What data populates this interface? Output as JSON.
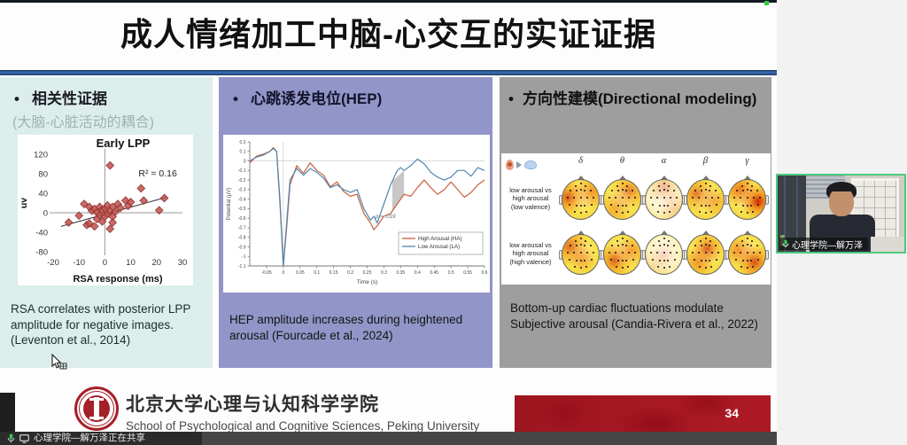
{
  "slide": {
    "title": "成人情绪加工中脑-心交互的实证证据",
    "bullet": "•",
    "page_number": "34",
    "panels": [
      {
        "heading": "相关性证据",
        "subheading": "(大脑-心脏活动的耦合)",
        "caption": "RSA correlates with posterior LPP amplitude for negative images. (Leventon et al., 2014)"
      },
      {
        "heading": "心跳诱发电位(HEP)",
        "caption": "HEP amplitude increases during heightened arousal (Fourcade et al., 2024)"
      },
      {
        "heading": "方向性建模(Directional modeling)",
        "caption": "Bottom-up cardiac fluctuations modulate Subjective arousal (Candia-Rivera et al., 2022)"
      }
    ],
    "footer": {
      "org_cn": "北京大学心理与认知科学学院",
      "org_en": "School of Psychological and Cognitive Sciences, Peking University"
    }
  },
  "meeting": {
    "participant_label": "心理学院—解万泽",
    "sharing_status": "心理学院—解万泽正在共享"
  },
  "colors": {
    "panel1_bg": "#dceeeb",
    "panel2_bg": "#9195c7",
    "panel3_bg": "#9e9e9e",
    "banner_red": "#a81b24",
    "title_rule_blue": "#2d5b9e",
    "scatter_marker": "#c0504d",
    "hep_high_arousal": "#c8603c",
    "hep_low_arousal": "#4f86ad",
    "webcam_border": "#4fc97e"
  },
  "chart_data": [
    {
      "type": "scatter",
      "title": "Early LPP",
      "xlabel": "RSA response (ms)",
      "ylabel": "uv",
      "xlim": [
        -20,
        30
      ],
      "ylim": [
        -80,
        120
      ],
      "xticks": [
        -20,
        -10,
        0,
        10,
        20,
        30
      ],
      "yticks": [
        -80,
        -40,
        0,
        40,
        80,
        120
      ],
      "annotation": "R² = 0.16",
      "annotation_xy": [
        13,
        75
      ],
      "marker": "diamond",
      "points": [
        [
          -14,
          -20
        ],
        [
          -10,
          -6
        ],
        [
          -8,
          18
        ],
        [
          -7,
          -25
        ],
        [
          -6,
          12
        ],
        [
          -6,
          -22
        ],
        [
          -5,
          4
        ],
        [
          -4,
          -28
        ],
        [
          -4,
          8
        ],
        [
          -3,
          0
        ],
        [
          -3,
          -13
        ],
        [
          -2,
          12
        ],
        [
          -2,
          -5
        ],
        [
          -1,
          -18
        ],
        [
          -1,
          6
        ],
        [
          0,
          8
        ],
        [
          0,
          -8
        ],
        [
          1,
          15
        ],
        [
          1,
          -2
        ],
        [
          2,
          97
        ],
        [
          2,
          4
        ],
        [
          2,
          -33
        ],
        [
          3,
          12
        ],
        [
          3,
          -8
        ],
        [
          3,
          -20
        ],
        [
          4,
          2
        ],
        [
          5,
          18
        ],
        [
          6,
          10
        ],
        [
          8,
          25
        ],
        [
          9,
          14
        ],
        [
          10,
          22
        ],
        [
          14,
          50
        ],
        [
          15,
          25
        ],
        [
          21,
          5
        ],
        [
          23,
          30
        ]
      ],
      "trendline": {
        "x1": -17,
        "y1": -28,
        "x2": 24,
        "y2": 32
      }
    },
    {
      "type": "line",
      "xlabel": "Time (s)",
      "ylabel": "Potential (µV)",
      "xlim": [
        -0.1,
        0.6
      ],
      "ylim": [
        -1.1,
        0.2
      ],
      "xticks": [
        -0.05,
        0,
        0.05,
        0.1,
        0.15,
        0.2,
        0.25,
        0.3,
        0.35,
        0.4,
        0.45,
        0.5,
        0.55,
        0.6
      ],
      "yticks": [
        0.2,
        0.1,
        0,
        -0.1,
        -0.2,
        -0.3,
        -0.4,
        -0.5,
        -0.6,
        -0.7,
        -0.8,
        -0.9,
        -1,
        -1.1
      ],
      "annotation": "p = .019",
      "annotation_xy": [
        0.275,
        -0.6
      ],
      "highlight_x": [
        0.325,
        0.36
      ],
      "legend_position": "lower right",
      "x": [
        -0.1,
        -0.08,
        -0.06,
        -0.04,
        -0.03,
        -0.02,
        -0.01,
        0,
        0.01,
        0.02,
        0.04,
        0.06,
        0.08,
        0.1,
        0.12,
        0.14,
        0.16,
        0.18,
        0.2,
        0.22,
        0.24,
        0.26,
        0.27,
        0.28,
        0.3,
        0.32,
        0.34,
        0.35,
        0.36,
        0.38,
        0.4,
        0.42,
        0.44,
        0.46,
        0.48,
        0.5,
        0.52,
        0.54,
        0.56,
        0.58,
        0.6
      ],
      "series": [
        {
          "name": "High Arousal (HA)",
          "color": "#c8603c",
          "values": [
            -0.02,
            0.05,
            0.07,
            0.1,
            0.14,
            0.1,
            -0.4,
            -1.1,
            -0.7,
            -0.25,
            -0.05,
            -0.13,
            -0.02,
            -0.1,
            -0.15,
            -0.27,
            -0.22,
            -0.32,
            -0.37,
            -0.35,
            -0.55,
            -0.65,
            -0.72,
            -0.68,
            -0.58,
            -0.55,
            -0.45,
            -0.4,
            -0.35,
            -0.37,
            -0.28,
            -0.2,
            -0.28,
            -0.35,
            -0.3,
            -0.22,
            -0.3,
            -0.38,
            -0.33,
            -0.25,
            -0.2
          ]
        },
        {
          "name": "Low Arousal (LA)",
          "color": "#4f86ad",
          "values": [
            0,
            0.04,
            0.06,
            0.1,
            0.13,
            0.1,
            -0.45,
            -1.1,
            -0.65,
            -0.2,
            -0.08,
            -0.15,
            -0.08,
            -0.12,
            -0.18,
            -0.28,
            -0.25,
            -0.3,
            -0.33,
            -0.3,
            -0.5,
            -0.62,
            -0.58,
            -0.65,
            -0.45,
            -0.25,
            -0.1,
            -0.07,
            -0.1,
            -0.05,
            0.02,
            -0.03,
            -0.12,
            -0.17,
            -0.2,
            -0.17,
            -0.1,
            -0.1,
            -0.16,
            -0.07,
            -0.1
          ]
        }
      ]
    },
    {
      "type": "heatmap",
      "subtype": "eeg-topomap-grid",
      "columns": [
        "δ",
        "θ",
        "α",
        "β",
        "γ"
      ],
      "rows": [
        [
          "low arousal vs",
          "high arousal",
          "(low valence)"
        ],
        [
          "low arousal vs",
          "high arousal",
          "(high valence)"
        ]
      ],
      "values": [
        [
          0.7,
          0.5,
          0.3,
          0.55,
          0.95
        ],
        [
          0.6,
          0.65,
          0.2,
          0.7,
          0.75
        ]
      ],
      "colormap": "yellow-orange-red"
    }
  ]
}
